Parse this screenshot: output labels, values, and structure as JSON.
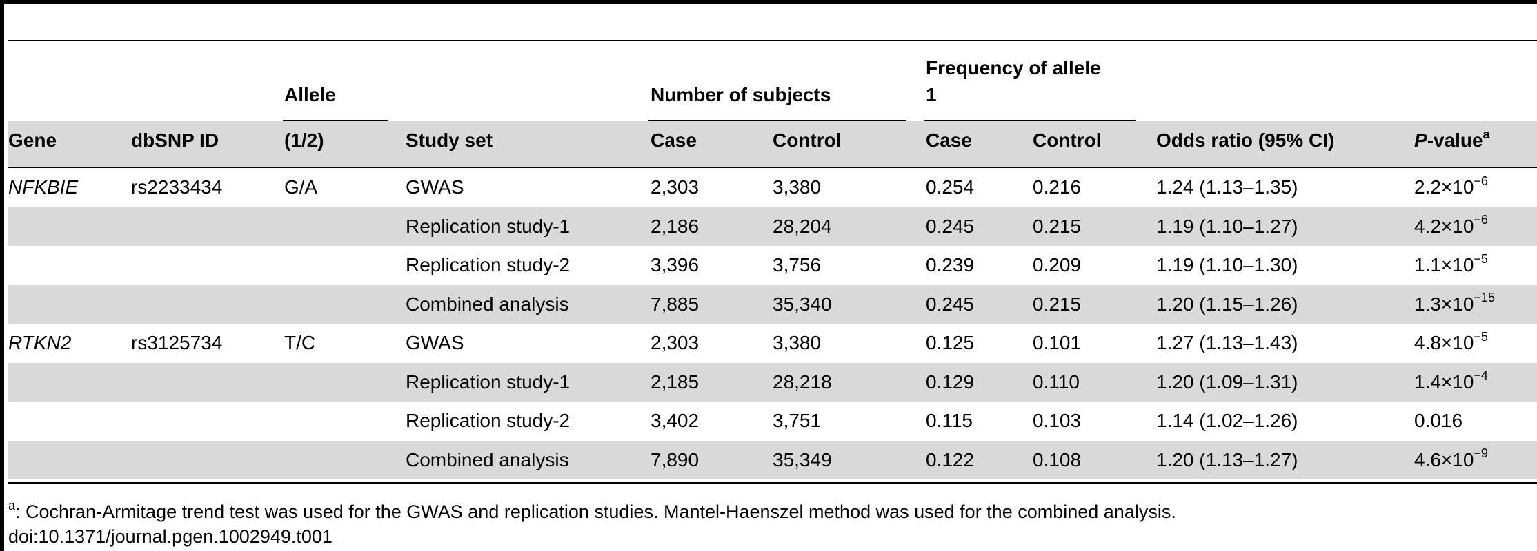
{
  "header": {
    "gene": "Gene",
    "dbsnp_id": "dbSNP ID",
    "allele_group": "Allele",
    "allele_sub": "(1/2)",
    "study_set": "Study set",
    "num_subjects": "Number of subjects",
    "freq_line1": "Frequency of allele",
    "freq_line2": "1",
    "case": "Case",
    "control": "Control",
    "case2": "Case",
    "control2": "Control",
    "odds_ratio": "Odds ratio (95% CI)",
    "pvalue_italic": "P",
    "pvalue_rest": "-value",
    "pvalue_sup": "a"
  },
  "rows": [
    {
      "gene": "NFKBIE",
      "snp": "rs2233434",
      "allele": "G/A",
      "study": "GWAS",
      "n_case": "2,303",
      "n_control": "3,380",
      "f_case": "0.254",
      "f_control": "0.216",
      "or": "1.24 (1.13–1.35)",
      "p_base": "2.2×10",
      "p_exp": "−6"
    },
    {
      "gene": "",
      "snp": "",
      "allele": "",
      "study": "Replication study-1",
      "n_case": "2,186",
      "n_control": "28,204",
      "f_case": "0.245",
      "f_control": "0.215",
      "or": "1.19 (1.10–1.27)",
      "p_base": "4.2×10",
      "p_exp": "−6"
    },
    {
      "gene": "",
      "snp": "",
      "allele": "",
      "study": "Replication study-2",
      "n_case": "3,396",
      "n_control": "3,756",
      "f_case": "0.239",
      "f_control": "0.209",
      "or": "1.19 (1.10–1.30)",
      "p_base": "1.1×10",
      "p_exp": "−5"
    },
    {
      "gene": "",
      "snp": "",
      "allele": "",
      "study": "Combined analysis",
      "n_case": "7,885",
      "n_control": "35,340",
      "f_case": "0.245",
      "f_control": "0.215",
      "or": "1.20 (1.15–1.26)",
      "p_base": "1.3×10",
      "p_exp": "−15"
    },
    {
      "gene": "RTKN2",
      "snp": "rs3125734",
      "allele": "T/C",
      "study": "GWAS",
      "n_case": "2,303",
      "n_control": "3,380",
      "f_case": "0.125",
      "f_control": "0.101",
      "or": "1.27 (1.13–1.43)",
      "p_base": "4.8×10",
      "p_exp": "−5"
    },
    {
      "gene": "",
      "snp": "",
      "allele": "",
      "study": "Replication study-1",
      "n_case": "2,185",
      "n_control": "28,218",
      "f_case": "0.129",
      "f_control": "0.110",
      "or": "1.20 (1.09–1.31)",
      "p_base": "1.4×10",
      "p_exp": "−4"
    },
    {
      "gene": "",
      "snp": "",
      "allele": "",
      "study": "Replication study-2",
      "n_case": "3,402",
      "n_control": "3,751",
      "f_case": "0.115",
      "f_control": "0.103",
      "or": "1.14 (1.02–1.26)",
      "p_base": "0.016",
      "p_exp": ""
    },
    {
      "gene": "",
      "snp": "",
      "allele": "",
      "study": "Combined analysis",
      "n_case": "7,890",
      "n_control": "35,349",
      "f_case": "0.122",
      "f_control": "0.108",
      "or": "1.20 (1.13–1.27)",
      "p_base": "4.6×10",
      "p_exp": "−9"
    }
  ],
  "footnote": {
    "marker": "a",
    "text": ": Cochran-Armitage trend test was used for the GWAS and replication studies. Mantel-Haenszel method was used for the combined analysis.",
    "doi": "doi:10.1371/journal.pgen.1002949.t001"
  },
  "colors": {
    "shade": "#d9d9d9",
    "rule": "#000000"
  }
}
